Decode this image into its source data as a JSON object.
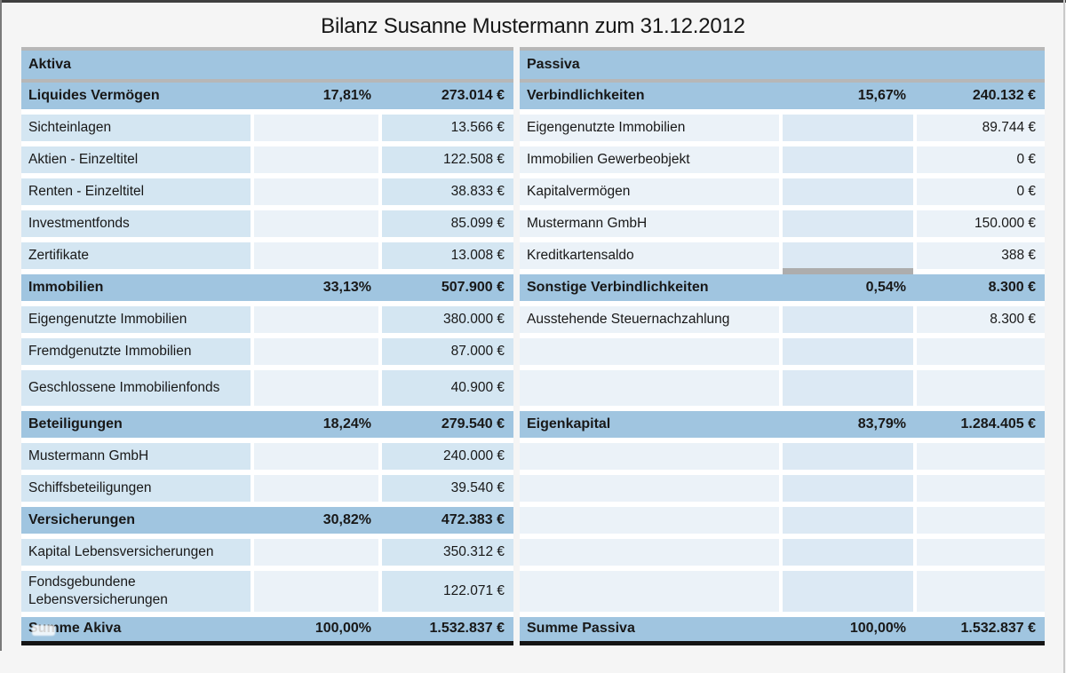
{
  "title": "Bilanz Susanne Mustermann zum 31.12.2012",
  "colors": {
    "headerBlue": "#a0c5e0",
    "cellBlue": "#d4e6f2",
    "cellLight": "#ebf2f8",
    "cellMid": "#dce9f4",
    "topBorderGray": "#b7b7b7",
    "bottomBorderBlack": "#141414"
  },
  "aktiva": {
    "header": "Aktiva",
    "rows": [
      {
        "t": "section",
        "label": "Liquides Vermögen",
        "pct": "17,81%",
        "val": "273.014 €"
      },
      {
        "t": "data",
        "label": "Sichteinlagen",
        "pct": "",
        "val": "13.566 €"
      },
      {
        "t": "data",
        "label": "Aktien - Einzeltitel",
        "pct": "",
        "val": "122.508 €"
      },
      {
        "t": "data",
        "label": "Renten - Einzeltitel",
        "pct": "",
        "val": "38.833 €"
      },
      {
        "t": "data",
        "label": "Investmentfonds",
        "pct": "",
        "val": "85.099 €"
      },
      {
        "t": "data",
        "label": "Zertifikate",
        "pct": "",
        "val": "13.008 €"
      },
      {
        "t": "section",
        "label": "Immobilien",
        "pct": "33,13%",
        "val": "507.900 €"
      },
      {
        "t": "data",
        "label": "Eigengenutzte Immobilien",
        "pct": "",
        "val": "380.000 €"
      },
      {
        "t": "data",
        "label": "Fremdgenutzte Immobilien",
        "pct": "",
        "val": "87.000 €"
      },
      {
        "t": "data",
        "label": "Geschlossene Immobilienfonds",
        "pct": "",
        "val": "40.900 €",
        "size": "tall"
      },
      {
        "t": "section",
        "label": "Beteiligungen",
        "pct": "18,24%",
        "val": "279.540 €"
      },
      {
        "t": "data",
        "label": "Mustermann GmbH",
        "pct": "",
        "val": "240.000 €"
      },
      {
        "t": "data",
        "label": "Schiffsbeteiligungen",
        "pct": "",
        "val": "39.540 €"
      },
      {
        "t": "section",
        "label": "Versicherungen",
        "pct": "30,82%",
        "val": "472.383 €"
      },
      {
        "t": "data",
        "label": "Kapital Lebensversicherungen",
        "pct": "",
        "val": "350.312 €"
      },
      {
        "t": "data",
        "label": "Fondsgebundene Lebensversicherungen",
        "pct": "",
        "val": "122.071 €",
        "size": "tall2"
      },
      {
        "t": "total",
        "label": "Summe Akiva",
        "pct": "100,00%",
        "val": "1.532.837 €",
        "smudge": true
      }
    ]
  },
  "passiva": {
    "header": "Passiva",
    "rows": [
      {
        "t": "section",
        "label": "Verbindlichkeiten",
        "pct": "15,67%",
        "val": "240.132 €"
      },
      {
        "t": "data",
        "label": "Eigengenutzte Immobilien",
        "pct": "",
        "val": "89.744 €"
      },
      {
        "t": "data",
        "label": "Immobilien Gewerbeobjekt",
        "pct": "",
        "val": "0 €"
      },
      {
        "t": "data",
        "label": "Kapitalvermögen",
        "pct": "",
        "val": "0 €"
      },
      {
        "t": "data",
        "label": "Mustermann GmbH",
        "pct": "",
        "val": "150.000 €"
      },
      {
        "t": "data",
        "label": "Kreditkartensaldo",
        "pct": "",
        "val": "388 €",
        "shadow": true
      },
      {
        "t": "section",
        "label": "Sonstige Verbindlichkeiten",
        "pct": "0,54%",
        "val": "8.300 €"
      },
      {
        "t": "data",
        "label": "Ausstehende Steuernachzahlung",
        "pct": "",
        "val": "8.300 €"
      },
      {
        "t": "empty",
        "label": "",
        "pct": "",
        "val": ""
      },
      {
        "t": "empty",
        "label": "",
        "pct": "",
        "val": "",
        "size": "tall"
      },
      {
        "t": "section",
        "label": "Eigenkapital",
        "pct": "83,79%",
        "val": "1.284.405 €"
      },
      {
        "t": "empty",
        "label": "",
        "pct": "",
        "val": ""
      },
      {
        "t": "empty",
        "label": "",
        "pct": "",
        "val": ""
      },
      {
        "t": "empty",
        "label": "",
        "pct": "",
        "val": ""
      },
      {
        "t": "empty",
        "label": "",
        "pct": "",
        "val": ""
      },
      {
        "t": "empty",
        "label": "",
        "pct": "",
        "val": "",
        "size": "tall2"
      },
      {
        "t": "total",
        "label": "Summe Passiva",
        "pct": "100,00%",
        "val": "1.532.837 €"
      }
    ]
  }
}
